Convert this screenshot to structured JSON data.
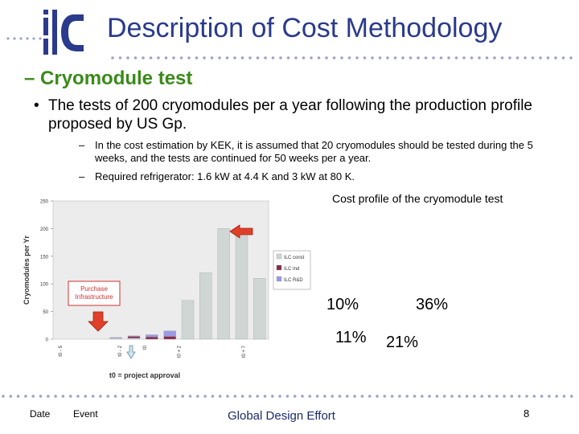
{
  "slide": {
    "title": "Description of Cost Methodology",
    "subtitle": "– Cryomodule test",
    "bullet": "The tests of 200 cryomodules per a year following the production profile proposed by US Gp.",
    "subbullets": [
      "In the cost estimation by KEK, it is assumed that 20 cryomodules should be tested during the 5 weeks, and the tests are continued for 50 weeks per a year.",
      "Required refrigerator: 1.6 kW at 4.4 K and 3 kW at 80 K."
    ],
    "chart_caption": "Cost profile of the cryomodule test",
    "percentages": [
      "10%",
      "36%",
      "11%",
      "21%"
    ]
  },
  "chart_data": {
    "type": "bar",
    "stacked": true,
    "ylabel": "Cryomodules per Yr",
    "xlabel": "t0 = project approval",
    "ylim": [
      0,
      250
    ],
    "yticks": [
      0,
      50,
      100,
      150,
      200,
      250
    ],
    "xtick_labels": [
      "t0 - 5",
      "t0 - 2",
      "t0",
      "t0 + 2",
      "t0 + 7"
    ],
    "series": [
      {
        "name": "ILC const",
        "color": "#cfd6d4",
        "values": [
          0,
          0,
          0,
          2,
          2,
          0,
          0,
          70,
          120,
          200,
          200,
          110
        ]
      },
      {
        "name": "ILC Ind",
        "color": "#8a2a4a",
        "values": [
          0,
          0,
          0,
          0,
          3,
          4,
          5,
          0,
          0,
          0,
          0,
          0
        ]
      },
      {
        "name": "ILC R&D",
        "color": "#9a9ae6",
        "values": [
          0,
          0,
          0,
          1,
          1,
          4,
          10,
          0,
          0,
          0,
          0,
          0
        ]
      }
    ],
    "annotation": "Purchase Infrastructure",
    "grid": false,
    "legend": "right"
  },
  "footer": {
    "date": "Date",
    "event": "Event",
    "center": "Global Design Effort",
    "page": "8"
  },
  "colors": {
    "title": "#2a3a8c",
    "subtitle": "#3a8a1a",
    "dots": "#9aa4c8",
    "arrow": "#e0402a"
  }
}
